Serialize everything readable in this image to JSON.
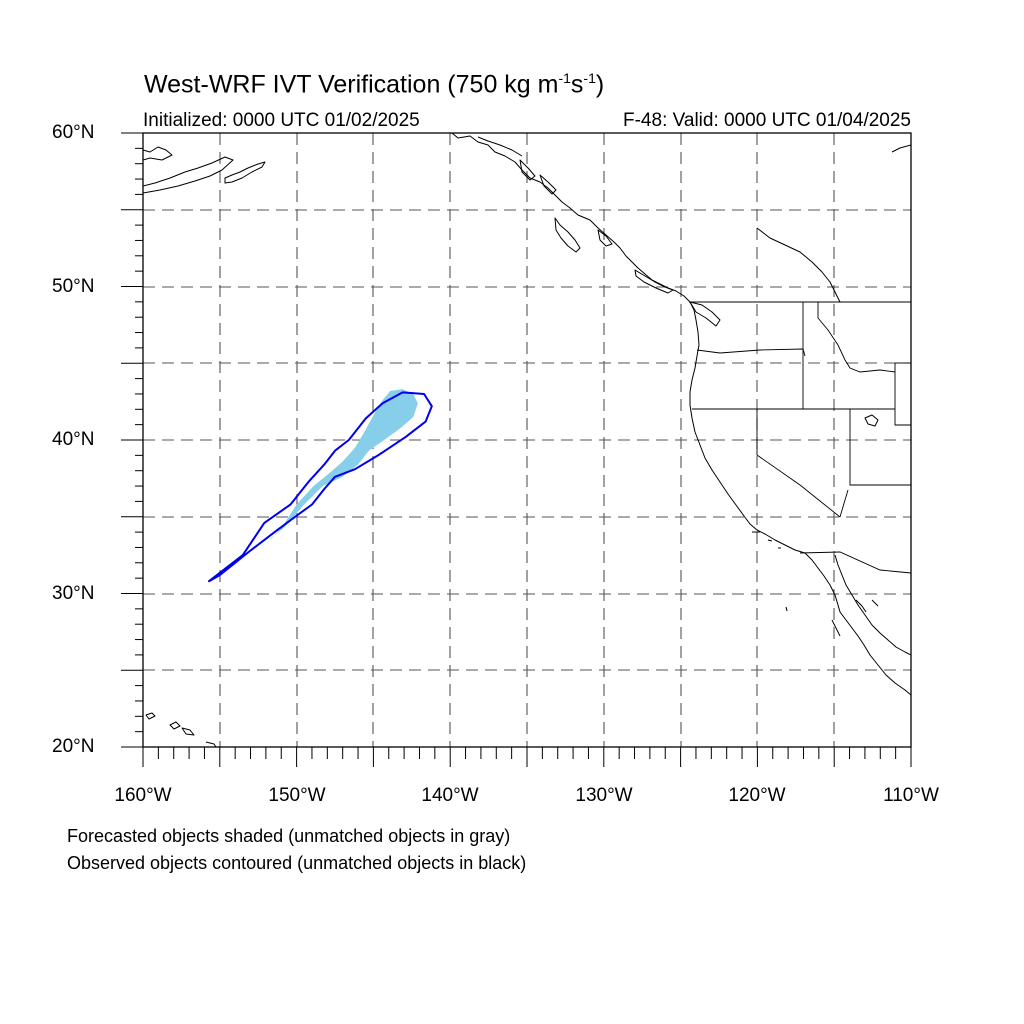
{
  "title": {
    "main": "West-WRF IVT Verification (750 kg m",
    "sup1": "-1",
    "mid": "s",
    "sup2": "-1",
    "end": ")"
  },
  "subtitle_left": "Initialized: 0000 UTC 01/02/2025",
  "subtitle_right": "F-48: Valid: 0000 UTC 01/04/2025",
  "lat_labels": [
    "60°N",
    "50°N",
    "40°N",
    "30°N",
    "20°N"
  ],
  "lon_labels": [
    "160°W",
    "150°W",
    "140°W",
    "130°W",
    "120°W",
    "110°W"
  ],
  "notes": [
    "Forecasted objects shaded (unmatched objects in gray)",
    "Observed objects contoured (unmatched objects in black)"
  ],
  "map_extent": {
    "lon_min": -160,
    "lon_max": -110,
    "lat_min": 20,
    "lat_max": 60
  },
  "colors": {
    "forecast_fill": "#87ceeb",
    "observed_contour": "#0000ee",
    "coast": "#000000",
    "grid": "#555555"
  },
  "forecast_object": {
    "lonlat": [
      [
        -151.6,
        33.6
      ],
      [
        -150.9,
        34.4
      ],
      [
        -150.0,
        35.8
      ],
      [
        -148.9,
        37.0
      ],
      [
        -147.8,
        37.9
      ],
      [
        -147.0,
        38.6
      ],
      [
        -146.2,
        39.5
      ],
      [
        -145.6,
        40.5
      ],
      [
        -145.0,
        41.6
      ],
      [
        -144.4,
        42.6
      ],
      [
        -143.9,
        43.2
      ],
      [
        -143.1,
        43.3
      ],
      [
        -142.4,
        43.0
      ],
      [
        -142.1,
        42.4
      ],
      [
        -142.4,
        41.5
      ],
      [
        -143.2,
        40.8
      ],
      [
        -144.3,
        40.0
      ],
      [
        -145.3,
        39.3
      ],
      [
        -146.0,
        38.4
      ],
      [
        -147.0,
        37.6
      ],
      [
        -148.3,
        37.0
      ],
      [
        -149.6,
        35.7
      ],
      [
        -150.8,
        34.3
      ],
      [
        -151.8,
        33.5
      ]
    ]
  },
  "observed_object": {
    "lonlat": [
      [
        -155.7,
        30.8
      ],
      [
        -153.5,
        32.5
      ],
      [
        -152.1,
        34.6
      ],
      [
        -150.4,
        35.8
      ],
      [
        -149.2,
        37.3
      ],
      [
        -148.2,
        38.4
      ],
      [
        -147.5,
        39.3
      ],
      [
        -146.6,
        40.0
      ],
      [
        -145.5,
        41.4
      ],
      [
        -144.4,
        42.4
      ],
      [
        -143.1,
        43.1
      ],
      [
        -141.7,
        43.0
      ],
      [
        -141.2,
        42.2
      ],
      [
        -141.6,
        41.2
      ],
      [
        -142.9,
        40.2
      ],
      [
        -144.7,
        39.0
      ],
      [
        -146.2,
        38.1
      ],
      [
        -147.5,
        37.6
      ],
      [
        -148.2,
        36.8
      ],
      [
        -149.0,
        35.8
      ],
      [
        -150.1,
        35.0
      ],
      [
        -151.3,
        34.1
      ],
      [
        -153.0,
        32.8
      ],
      [
        -155.0,
        31.2
      ],
      [
        -155.7,
        30.8
      ]
    ]
  }
}
